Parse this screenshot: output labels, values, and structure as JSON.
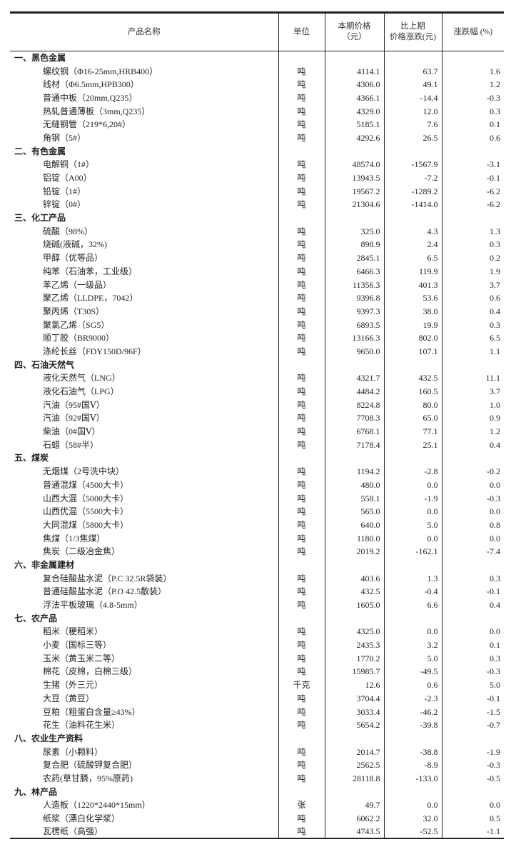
{
  "header": {
    "name": "产品名称",
    "unit": "单位",
    "price_l1": "本期价格",
    "price_l2": "（元）",
    "chg_l1": "比上期",
    "chg_l2": "价格涨跌(元)",
    "pct": "涨跌幅 (%)"
  },
  "sections": [
    {
      "title": "一、黑色金属",
      "items": [
        [
          "螺纹钢（Φ16-25mm,HRB400）",
          "吨",
          "4114.1",
          "63.7",
          "1.6"
        ],
        [
          "线材（Φ6.5mm,HPB300）",
          "吨",
          "4306.0",
          "49.1",
          "1.2"
        ],
        [
          "普通中板（20mm,Q235）",
          "吨",
          "4366.1",
          "-14.4",
          "-0.3"
        ],
        [
          "热轧普通薄板（3mm,Q235）",
          "吨",
          "4329.0",
          "12.0",
          "0.3"
        ],
        [
          "无缝钢管（219*6,20#）",
          "吨",
          "5185.1",
          "7.6",
          "0.1"
        ],
        [
          "角钢（5#）",
          "吨",
          "4292.6",
          "26.5",
          "0.6"
        ]
      ]
    },
    {
      "title": "二、有色金属",
      "items": [
        [
          "电解铜（1#）",
          "吨",
          "48574.0",
          "-1567.9",
          "-3.1"
        ],
        [
          "铝锭（A00）",
          "吨",
          "13943.5",
          "-7.2",
          "-0.1"
        ],
        [
          "铅锭（1#）",
          "吨",
          "19567.2",
          "-1289.2",
          "-6.2"
        ],
        [
          "锌锭（0#）",
          "吨",
          "21304.6",
          "-1414.0",
          "-6.2"
        ]
      ]
    },
    {
      "title": "三、化工产品",
      "items": [
        [
          "硫酸（98%）",
          "吨",
          "325.0",
          "4.3",
          "1.3"
        ],
        [
          "烧碱(液碱，32%)",
          "吨",
          "898.9",
          "2.4",
          "0.3"
        ],
        [
          "甲醇（优等品）",
          "吨",
          "2845.1",
          "6.5",
          "0.2"
        ],
        [
          "纯苯（石油苯，工业级）",
          "吨",
          "6466.3",
          "119.9",
          "1.9"
        ],
        [
          "苯乙烯（一级品）",
          "吨",
          "11356.3",
          "401.3",
          "3.7"
        ],
        [
          "聚乙烯（LLDPE，7042）",
          "吨",
          "9396.8",
          "53.6",
          "0.6"
        ],
        [
          "聚丙烯（T30S）",
          "吨",
          "9397.3",
          "38.0",
          "0.4"
        ],
        [
          "聚氯乙烯（SG5）",
          "吨",
          "6893.5",
          "19.9",
          "0.3"
        ],
        [
          "顺丁胶（BR9000）",
          "吨",
          "13166.3",
          "802.0",
          "6.5"
        ],
        [
          "涤纶长丝（FDY150D/96F）",
          "吨",
          "9650.0",
          "107.1",
          "1.1"
        ]
      ]
    },
    {
      "title": "四、石油天然气",
      "items": [
        [
          "液化天然气（LNG）",
          "吨",
          "4321.7",
          "432.5",
          "11.1"
        ],
        [
          "液化石油气（LPG）",
          "吨",
          "4484.2",
          "160.5",
          "3.7"
        ],
        [
          "汽油（95#国Ⅴ）",
          "吨",
          "8224.8",
          "80.0",
          "1.0"
        ],
        [
          "汽油（92#国Ⅴ）",
          "吨",
          "7708.3",
          "65.0",
          "0.9"
        ],
        [
          "柴油（0#国Ⅴ）",
          "吨",
          "6768.1",
          "77.1",
          "1.2"
        ],
        [
          "石蜡（58#半）",
          "吨",
          "7178.4",
          "25.1",
          "0.4"
        ]
      ]
    },
    {
      "title": "五、煤炭",
      "items": [
        [
          "无烟煤（2号洗中块）",
          "吨",
          "1194.2",
          "-2.8",
          "-0.2"
        ],
        [
          "普通混煤（4500大卡）",
          "吨",
          "480.0",
          "0.0",
          "0.0"
        ],
        [
          "山西大混（5000大卡）",
          "吨",
          "558.1",
          "-1.9",
          "-0.3"
        ],
        [
          "山西优混（5500大卡）",
          "吨",
          "565.0",
          "0.0",
          "0.0"
        ],
        [
          "大同混煤（5800大卡）",
          "吨",
          "640.0",
          "5.0",
          "0.8"
        ],
        [
          "焦煤（1/3焦煤）",
          "吨",
          "1180.0",
          "0.0",
          "0.0"
        ],
        [
          "焦炭（二级冶金焦）",
          "吨",
          "2019.2",
          "-162.1",
          "-7.4"
        ]
      ]
    },
    {
      "title": "六、非金属建材",
      "items": [
        [
          "复合硅酸盐水泥（P.C 32.5R袋装）",
          "吨",
          "403.6",
          "1.3",
          "0.3"
        ],
        [
          "普通硅酸盐水泥（P.O 42.5散装）",
          "吨",
          "432.5",
          "-0.4",
          "-0.1"
        ],
        [
          "浮法平板玻璃（4.8-5mm）",
          "吨",
          "1605.0",
          "6.6",
          "0.4"
        ]
      ]
    },
    {
      "title": "七、农产品",
      "items": [
        [
          "稻米（粳稻米）",
          "吨",
          "4325.0",
          "0.0",
          "0.0"
        ],
        [
          "小麦（国标三等）",
          "吨",
          "2435.3",
          "3.2",
          "0.1"
        ],
        [
          "玉米（黄玉米二等）",
          "吨",
          "1770.2",
          "5.0",
          "0.3"
        ],
        [
          "棉花（皮棉，白棉三级）",
          "吨",
          "15985.7",
          "-49.5",
          "-0.3"
        ],
        [
          "生猪（外三元）",
          "千克",
          "12.6",
          "0.6",
          "5.0"
        ],
        [
          "大豆（黄豆）",
          "吨",
          "3704.4",
          "-2.3",
          "-0.1"
        ],
        [
          "豆粕（粗蛋白含量≥43%）",
          "吨",
          "3033.4",
          "-46.2",
          "-1.5"
        ],
        [
          "花生（油料花生米）",
          "吨",
          "5654.2",
          "-39.8",
          "-0.7"
        ]
      ]
    },
    {
      "title": "八、农业生产资料",
      "items": [
        [
          "尿素（小颗料）",
          "吨",
          "2014.7",
          "-38.8",
          "-1.9"
        ],
        [
          "复合肥（硫酸钾复合肥）",
          "吨",
          "2562.5",
          "-8.9",
          "-0.3"
        ],
        [
          "农药(草甘膦，95%原药)",
          "吨",
          "28118.8",
          "-133.0",
          "-0.5"
        ]
      ]
    },
    {
      "title": "九、林产品",
      "items": [
        [
          "人造板（1220*2440*15mm）",
          "张",
          "49.7",
          "0.0",
          "0.0"
        ],
        [
          "纸浆（漂白化学浆）",
          "吨",
          "6062.2",
          "32.0",
          "0.5"
        ],
        [
          "瓦楞纸（高强）",
          "吨",
          "4743.5",
          "-52.5",
          "-1.1"
        ]
      ]
    }
  ]
}
